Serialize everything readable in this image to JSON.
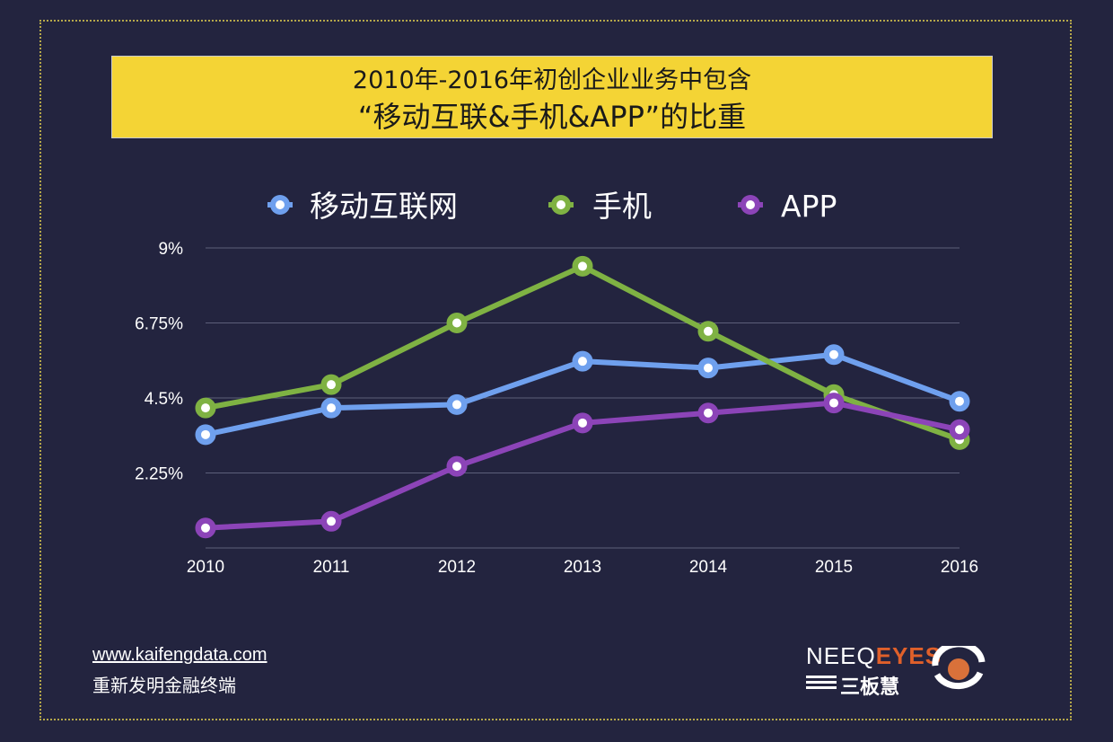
{
  "title": {
    "line1": "2010年-2016年初创企业业务中包含",
    "line2": "“移动互联&手机&APP”的比重"
  },
  "chart_data": {
    "type": "line",
    "categories": [
      "2010",
      "2011",
      "2012",
      "2013",
      "2014",
      "2015",
      "2016"
    ],
    "y_ticks": [
      "9%",
      "6.75%",
      "4.5%",
      "2.25%"
    ],
    "y_tick_values": [
      9,
      6.75,
      4.5,
      2.25
    ],
    "ylim": [
      0,
      9
    ],
    "series": [
      {
        "name": "移动互联网",
        "color": "#6fa0ee",
        "values": [
          3.4,
          4.2,
          4.3,
          5.6,
          5.4,
          5.8,
          4.4
        ]
      },
      {
        "name": "手机",
        "color": "#7fb243",
        "values": [
          4.2,
          4.9,
          6.75,
          8.45,
          6.5,
          4.6,
          3.25
        ]
      },
      {
        "name": "APP",
        "color": "#8c44b8",
        "values": [
          0.6,
          0.8,
          2.45,
          3.75,
          4.05,
          4.35,
          3.55
        ]
      }
    ]
  },
  "footer": {
    "url": "www.kaifengdata.com",
    "slogan": "重新发明金融终端"
  },
  "logo": {
    "text_main": "NEEQ",
    "text_accent": "EYES",
    "sub": "三板慧"
  }
}
